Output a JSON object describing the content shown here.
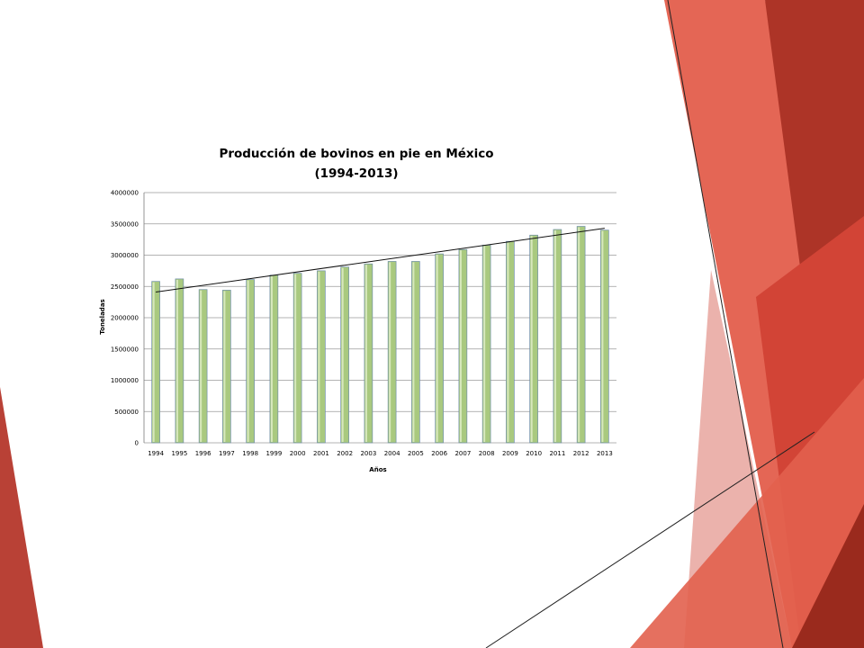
{
  "slide": {
    "accent_colors": [
      "#d9473a",
      "#e05a4c",
      "#b0392c",
      "#9c2a1e",
      "#e8786c"
    ]
  },
  "chart_data": {
    "type": "bar",
    "title": "Producción de bovinos en pie en México",
    "subtitle": "(1994-2013)",
    "xlabel": "Años",
    "ylabel": "Toneladas",
    "ylim": [
      0,
      4000000
    ],
    "yticks": [
      0,
      500000,
      1000000,
      1500000,
      2000000,
      2500000,
      3000000,
      3500000,
      4000000
    ],
    "categories": [
      "1994",
      "1995",
      "1996",
      "1997",
      "1998",
      "1999",
      "2000",
      "2001",
      "2002",
      "2003",
      "2004",
      "2005",
      "2006",
      "2007",
      "2008",
      "2009",
      "2010",
      "2011",
      "2012",
      "2013"
    ],
    "values": [
      2580000,
      2620000,
      2450000,
      2440000,
      2610000,
      2680000,
      2710000,
      2750000,
      2810000,
      2860000,
      2900000,
      2900000,
      3020000,
      3090000,
      3160000,
      3220000,
      3320000,
      3410000,
      3460000,
      3400000
    ],
    "trendline": {
      "start": 2410000,
      "end": 3430000
    },
    "bar_color": "#a9c97f",
    "grid": true,
    "legend": "none"
  }
}
